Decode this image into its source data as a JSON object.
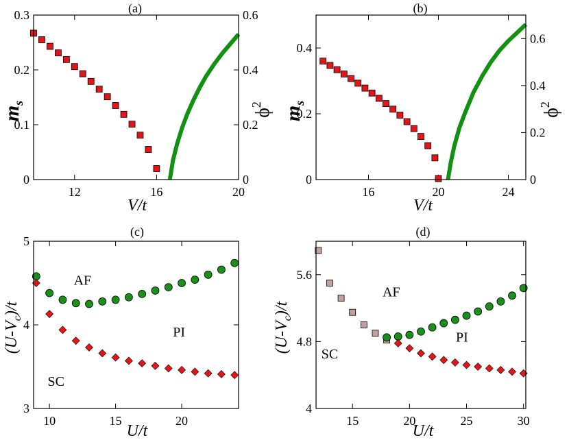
{
  "chart_data": [
    {
      "id": "a",
      "type": "scatter+line",
      "panel_label": "(a)",
      "xlabel": "V/t",
      "ylabel_left": "m",
      "ylabel_left_sub": "s",
      "ylabel_right": "ϕ",
      "ylabel_right_sup": "2",
      "xlim": [
        10,
        20
      ],
      "ylim_left": [
        0,
        0.3
      ],
      "ylim_right": [
        0,
        0.6
      ],
      "xticks": [
        12,
        16,
        20
      ],
      "xtick_labels": [
        "12",
        "16",
        "20"
      ],
      "yticks_left": [
        0,
        0.1,
        0.2,
        0.3
      ],
      "ytick_labels_left": [
        "0",
        "0.1",
        "0.2",
        "0.3"
      ],
      "yticks_right": [
        0,
        0.2,
        0.4,
        0.6
      ],
      "ytick_labels_right": [
        "0",
        "0.2",
        "0.4",
        "0.6"
      ],
      "series": [
        {
          "name": "m_s",
          "axis": "left",
          "style": "square",
          "color": "#e0161a",
          "x": [
            10,
            10.4,
            10.8,
            11.2,
            11.6,
            12,
            12.4,
            12.8,
            13.2,
            13.6,
            14,
            14.4,
            14.8,
            15.2,
            15.6,
            16
          ],
          "y": [
            0.267,
            0.255,
            0.243,
            0.231,
            0.219,
            0.206,
            0.193,
            0.179,
            0.165,
            0.151,
            0.135,
            0.119,
            0.101,
            0.081,
            0.055,
            0.02
          ]
        },
        {
          "name": "phi^2",
          "axis": "right",
          "style": "line",
          "color": "#129012",
          "x": [
            16.65,
            16.8,
            17.0,
            17.25,
            17.5,
            17.8,
            18.1,
            18.4,
            18.8,
            19.2,
            19.6,
            20
          ],
          "y": [
            0,
            0.07,
            0.13,
            0.19,
            0.24,
            0.29,
            0.335,
            0.375,
            0.42,
            0.46,
            0.495,
            0.53
          ]
        }
      ]
    },
    {
      "id": "b",
      "type": "scatter+line",
      "panel_label": "(b)",
      "xlabel": "V/t",
      "ylabel_left": "m",
      "ylabel_left_sub": "s",
      "ylabel_right": "ϕ",
      "ylabel_right_sup": "2",
      "xlim": [
        13,
        25
      ],
      "ylim_left": [
        0,
        0.5
      ],
      "ylim_right": [
        0,
        0.7
      ],
      "xticks": [
        16,
        20,
        24
      ],
      "xtick_labels": [
        "16",
        "20",
        "24"
      ],
      "yticks_left": [
        0,
        0.2,
        0.4
      ],
      "ytick_labels_left": [
        "0",
        "0.2",
        "0.4"
      ],
      "yticks_right": [
        0,
        0.2,
        0.4,
        0.6
      ],
      "ytick_labels_right": [
        "0",
        "0.2",
        "0.4",
        "0.6"
      ],
      "series": [
        {
          "name": "m_s",
          "axis": "left",
          "style": "square",
          "color": "#e0161a",
          "x": [
            13.4,
            13.8,
            14.2,
            14.6,
            15,
            15.4,
            15.8,
            16.2,
            16.6,
            17,
            17.4,
            17.8,
            18.2,
            18.6,
            19,
            19.4,
            19.8,
            20
          ],
          "y": [
            0.36,
            0.347,
            0.334,
            0.321,
            0.307,
            0.293,
            0.278,
            0.263,
            0.247,
            0.231,
            0.214,
            0.196,
            0.176,
            0.155,
            0.131,
            0.103,
            0.066,
            0.003
          ]
        },
        {
          "name": "phi^2",
          "axis": "right",
          "style": "line",
          "color": "#129012",
          "x": [
            20.55,
            20.7,
            20.9,
            21.2,
            21.5,
            22.0,
            22.5,
            23.0,
            23.5,
            24.0,
            24.5,
            25
          ],
          "y": [
            0,
            0.07,
            0.14,
            0.22,
            0.28,
            0.37,
            0.44,
            0.5,
            0.55,
            0.59,
            0.625,
            0.66
          ]
        }
      ]
    },
    {
      "id": "c",
      "type": "scatter",
      "panel_label": "(c)",
      "xlabel": "U/t",
      "ylabel": "(U-V",
      "ylabel_sub": "c",
      "ylabel_tail": ")/t",
      "xlim": [
        8.8,
        24.3
      ],
      "ylim": [
        3,
        5
      ],
      "xticks": [
        10,
        15,
        20
      ],
      "xtick_labels": [
        "10",
        "15",
        "20"
      ],
      "yticks": [
        3,
        4,
        5
      ],
      "ytick_labels": [
        "3",
        "4",
        "5"
      ],
      "regions": [
        {
          "label": "AF",
          "x": 12.5,
          "y": 4.48
        },
        {
          "label": "PI",
          "x": 19.8,
          "y": 3.86
        },
        {
          "label": "SC",
          "x": 10.5,
          "y": 3.27
        }
      ],
      "series": [
        {
          "name": "AF boundary",
          "style": "circle",
          "color": "#1a8f1a",
          "x": [
            9,
            10,
            11,
            12,
            13,
            14,
            15,
            16,
            17,
            18,
            19,
            20,
            21,
            22,
            23,
            24
          ],
          "y": [
            4.58,
            4.38,
            4.3,
            4.26,
            4.25,
            4.28,
            4.3,
            4.33,
            4.37,
            4.41,
            4.45,
            4.5,
            4.54,
            4.6,
            4.66,
            4.74
          ]
        },
        {
          "name": "SC boundary",
          "style": "diamond",
          "color": "#e0161a",
          "x": [
            9,
            10,
            11,
            12,
            13,
            14,
            15,
            16,
            17,
            18,
            19,
            20,
            21,
            22,
            23,
            24
          ],
          "y": [
            4.5,
            4.13,
            3.94,
            3.81,
            3.73,
            3.66,
            3.61,
            3.57,
            3.54,
            3.51,
            3.48,
            3.46,
            3.44,
            3.42,
            3.41,
            3.4
          ]
        }
      ]
    },
    {
      "id": "d",
      "type": "scatter",
      "panel_label": "(d)",
      "xlabel": "U/t",
      "ylabel": "(U-V",
      "ylabel_sub": "c",
      "ylabel_tail": ")/t",
      "xlim": [
        11.8,
        30.2
      ],
      "ylim": [
        4,
        6
      ],
      "xticks": [
        15,
        20,
        25,
        30
      ],
      "xtick_labels": [
        "15",
        "20",
        "25",
        "30"
      ],
      "yticks": [
        4,
        4.8,
        5.6
      ],
      "ytick_labels": [
        "4",
        "4.8",
        "5.6"
      ],
      "regions": [
        {
          "label": "AF",
          "x": 18.4,
          "y": 5.34
        },
        {
          "label": "PI",
          "x": 24.6,
          "y": 4.8
        },
        {
          "label": "SC",
          "x": 13.0,
          "y": 4.6
        }
      ],
      "series": [
        {
          "name": "first-order boundary",
          "style": "square",
          "color": "#c4a09c",
          "x": [
            12,
            13,
            14,
            15,
            16,
            17,
            18
          ],
          "y": [
            5.89,
            5.5,
            5.32,
            5.15,
            5.0,
            4.9,
            4.82
          ]
        },
        {
          "name": "AF boundary",
          "style": "circle",
          "color": "#1a8f1a",
          "x": [
            18,
            19,
            20,
            21,
            22,
            23,
            24,
            25,
            26,
            27,
            28,
            29,
            30
          ],
          "y": [
            4.85,
            4.86,
            4.88,
            4.92,
            4.97,
            5.02,
            5.06,
            5.11,
            5.16,
            5.22,
            5.28,
            5.35,
            5.44
          ]
        },
        {
          "name": "SC boundary",
          "style": "diamond",
          "color": "#e0161a",
          "x": [
            19,
            20,
            21,
            22,
            23,
            24,
            25,
            26,
            27,
            28,
            29,
            30
          ],
          "y": [
            4.78,
            4.72,
            4.66,
            4.62,
            4.58,
            4.55,
            4.52,
            4.5,
            4.48,
            4.46,
            4.44,
            4.42
          ]
        }
      ]
    }
  ]
}
